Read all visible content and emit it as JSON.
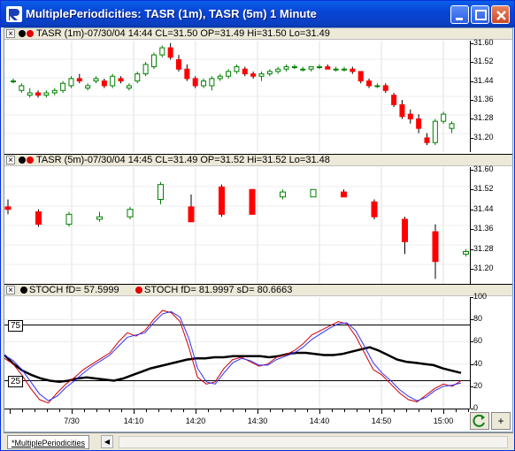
{
  "window": {
    "title": "MultiplePeriodicities: TASR (1m), TASR (5m) 1 Minute"
  },
  "panes": [
    {
      "header": "TASR (1m)-07/30/04 14:44 CL=31.50 OP=31.49 Hi=31.50 Lo=31.49",
      "dot_colors": [
        "#000000",
        "#e00000"
      ],
      "scale_ticks": [
        "31.60",
        "31.52",
        "31.44",
        "31.36",
        "31.28",
        "31.20"
      ],
      "ymin": 31.14,
      "ymax": 31.61
    },
    {
      "header": "TASR (5m)-07/30/04 14:45 CL=31.49 OP=31.52 Hi=31.52 Lo=31.48",
      "dot_colors": [
        "#000000",
        "#e00000"
      ],
      "scale_ticks": [
        "31.60",
        "31.52",
        "31.44",
        "31.36",
        "31.28",
        "31.20"
      ],
      "ymin": 31.14,
      "ymax": 31.61
    },
    {
      "header_a": "STOCH fD= 57.5999",
      "header_b": "STOCH fD= 81.9997  sD= 80.6663",
      "dot_colors": [
        "#000000",
        "#e00000"
      ],
      "scale_ticks": [
        "100",
        "80",
        "60",
        "40",
        "20",
        "0"
      ],
      "ref_levels": [
        "75",
        "25"
      ],
      "ymin": 0,
      "ymax": 100
    }
  ],
  "x_axis": {
    "ticks": [
      "7/30",
      "14:10",
      "14:20",
      "14:30",
      "14:40",
      "14:50",
      "15:00"
    ]
  },
  "tabs": [
    {
      "label": "*MultiplePeriodicities"
    }
  ],
  "corner_buttons": [
    "refresh-icon",
    "plus-icon"
  ],
  "colors": {
    "up_candle": "#008000",
    "down_candle": "#ff0000",
    "stoch_black": "#000000",
    "stoch_red": "#cc0000",
    "stoch_blue": "#3030ff"
  },
  "chart_data": [
    {
      "type": "candlestick",
      "title": "TASR (1m)",
      "ohlc": [
        [
          31.44,
          31.45,
          31.43,
          31.44
        ],
        [
          31.4,
          31.43,
          31.39,
          31.42
        ],
        [
          31.38,
          31.41,
          31.37,
          31.39
        ],
        [
          31.39,
          31.4,
          31.37,
          31.38
        ],
        [
          31.38,
          31.4,
          31.37,
          31.39
        ],
        [
          31.39,
          31.41,
          31.38,
          31.4
        ],
        [
          31.4,
          31.44,
          31.39,
          31.43
        ],
        [
          31.42,
          31.46,
          31.41,
          31.45
        ],
        [
          31.45,
          31.47,
          31.43,
          31.44
        ],
        [
          31.41,
          31.43,
          31.4,
          31.42
        ],
        [
          31.44,
          31.46,
          31.43,
          31.45
        ],
        [
          31.44,
          31.45,
          31.41,
          31.42
        ],
        [
          31.42,
          31.47,
          31.41,
          31.46
        ],
        [
          31.45,
          31.46,
          31.43,
          31.44
        ],
        [
          31.41,
          31.43,
          31.4,
          31.42
        ],
        [
          31.44,
          31.48,
          31.43,
          31.47
        ],
        [
          31.47,
          31.52,
          31.46,
          31.51
        ],
        [
          31.5,
          31.56,
          31.49,
          31.55
        ],
        [
          31.55,
          31.59,
          31.54,
          31.58
        ],
        [
          31.58,
          31.6,
          31.53,
          31.54
        ],
        [
          31.53,
          31.55,
          31.48,
          31.49
        ],
        [
          31.49,
          31.51,
          31.44,
          31.45
        ],
        [
          31.45,
          31.46,
          31.41,
          31.42
        ],
        [
          31.42,
          31.45,
          31.41,
          31.44
        ],
        [
          31.42,
          31.46,
          31.4,
          31.45
        ],
        [
          31.45,
          31.47,
          31.44,
          31.46
        ],
        [
          31.46,
          31.49,
          31.45,
          31.48
        ],
        [
          31.48,
          31.51,
          31.47,
          31.5
        ],
        [
          31.49,
          31.5,
          31.46,
          31.47
        ],
        [
          31.47,
          31.48,
          31.45,
          31.46
        ],
        [
          31.46,
          31.48,
          31.44,
          31.47
        ],
        [
          31.47,
          31.49,
          31.46,
          31.48
        ],
        [
          31.48,
          31.5,
          31.47,
          31.49
        ],
        [
          31.49,
          31.51,
          31.48,
          31.5
        ],
        [
          31.5,
          31.51,
          31.49,
          31.5
        ],
        [
          31.49,
          31.5,
          31.48,
          31.49
        ],
        [
          31.49,
          31.5,
          31.48,
          31.5
        ],
        [
          31.5,
          31.51,
          31.49,
          31.5
        ],
        [
          31.5,
          31.51,
          31.49,
          31.49
        ],
        [
          31.49,
          31.5,
          31.48,
          31.49
        ],
        [
          31.49,
          31.5,
          31.48,
          31.49
        ],
        [
          31.49,
          31.5,
          31.47,
          31.48
        ],
        [
          31.48,
          31.48,
          31.43,
          31.44
        ],
        [
          31.44,
          31.45,
          31.41,
          31.42
        ],
        [
          31.42,
          31.43,
          31.41,
          31.42
        ],
        [
          31.42,
          31.43,
          31.39,
          31.4
        ],
        [
          31.38,
          31.39,
          31.33,
          31.34
        ],
        [
          31.34,
          31.36,
          31.28,
          31.29
        ],
        [
          31.3,
          31.32,
          31.26,
          31.28
        ],
        [
          31.28,
          31.3,
          31.22,
          31.24
        ],
        [
          31.2,
          31.22,
          31.17,
          31.18
        ],
        [
          31.18,
          31.28,
          31.17,
          31.27
        ],
        [
          31.27,
          31.31,
          31.26,
          31.3
        ],
        [
          31.24,
          31.27,
          31.22,
          31.26
        ]
      ]
    },
    {
      "type": "candlestick",
      "title": "TASR (5m)",
      "ohlc": [
        [
          31.45,
          31.48,
          31.42,
          31.44
        ],
        [
          31.43,
          31.44,
          31.37,
          31.38
        ],
        [
          31.38,
          31.43,
          31.37,
          31.42
        ],
        [
          31.4,
          31.43,
          31.39,
          31.41
        ],
        [
          31.41,
          31.45,
          31.4,
          31.44
        ],
        [
          31.48,
          31.55,
          31.46,
          31.54
        ],
        [
          31.45,
          31.5,
          31.39,
          31.39
        ],
        [
          31.53,
          31.54,
          31.41,
          31.42
        ],
        [
          31.52,
          31.52,
          31.42,
          31.42
        ],
        [
          31.49,
          31.52,
          31.48,
          31.51
        ],
        [
          31.49,
          31.52,
          31.49,
          31.52
        ],
        [
          31.51,
          31.52,
          31.49,
          31.49
        ],
        [
          31.47,
          31.48,
          31.4,
          31.41
        ],
        [
          31.4,
          31.41,
          31.26,
          31.31
        ],
        [
          31.35,
          31.38,
          31.16,
          31.23
        ],
        [
          31.26,
          31.28,
          31.25,
          31.27
        ]
      ]
    },
    {
      "type": "line",
      "title": "STOCH",
      "ylim": [
        0,
        100
      ],
      "series": [
        {
          "name": "STOCH fD= 57.5999",
          "color": "#000000",
          "values": [
            48,
            40,
            34,
            30,
            27,
            25,
            24,
            25,
            27,
            28,
            27,
            26,
            25,
            27,
            30,
            33,
            36,
            38,
            40,
            42,
            44,
            45,
            45,
            46,
            46,
            47,
            47,
            47,
            47,
            46,
            47,
            49,
            50,
            50,
            49,
            48,
            48,
            49,
            51,
            53,
            55,
            52,
            48,
            44,
            42,
            41,
            40,
            39,
            36,
            34,
            32
          ]
        },
        {
          "name": "STOCH fD= 81.9997",
          "color": "#cc0000",
          "values": [
            45,
            40,
            30,
            18,
            8,
            5,
            14,
            22,
            28,
            35,
            40,
            45,
            50,
            60,
            68,
            65,
            70,
            80,
            88,
            86,
            78,
            55,
            28,
            22,
            24,
            36,
            44,
            46,
            42,
            38,
            40,
            46,
            48,
            52,
            58,
            66,
            70,
            74,
            78,
            76,
            65,
            50,
            35,
            30,
            22,
            14,
            8,
            6,
            12,
            18,
            22,
            20,
            25
          ]
        },
        {
          "name": "sD= 80.6663",
          "color": "#3030ff",
          "values": [
            48,
            43,
            35,
            24,
            13,
            7,
            11,
            19,
            25,
            32,
            38,
            43,
            48,
            56,
            64,
            66,
            68,
            77,
            85,
            87,
            82,
            63,
            36,
            24,
            22,
            32,
            41,
            45,
            43,
            39,
            39,
            44,
            47,
            50,
            55,
            62,
            67,
            72,
            76,
            77,
            70,
            56,
            41,
            32,
            25,
            17,
            11,
            7,
            10,
            16,
            20,
            21,
            23
          ]
        }
      ],
      "ref_levels": [
        75,
        25
      ]
    }
  ]
}
